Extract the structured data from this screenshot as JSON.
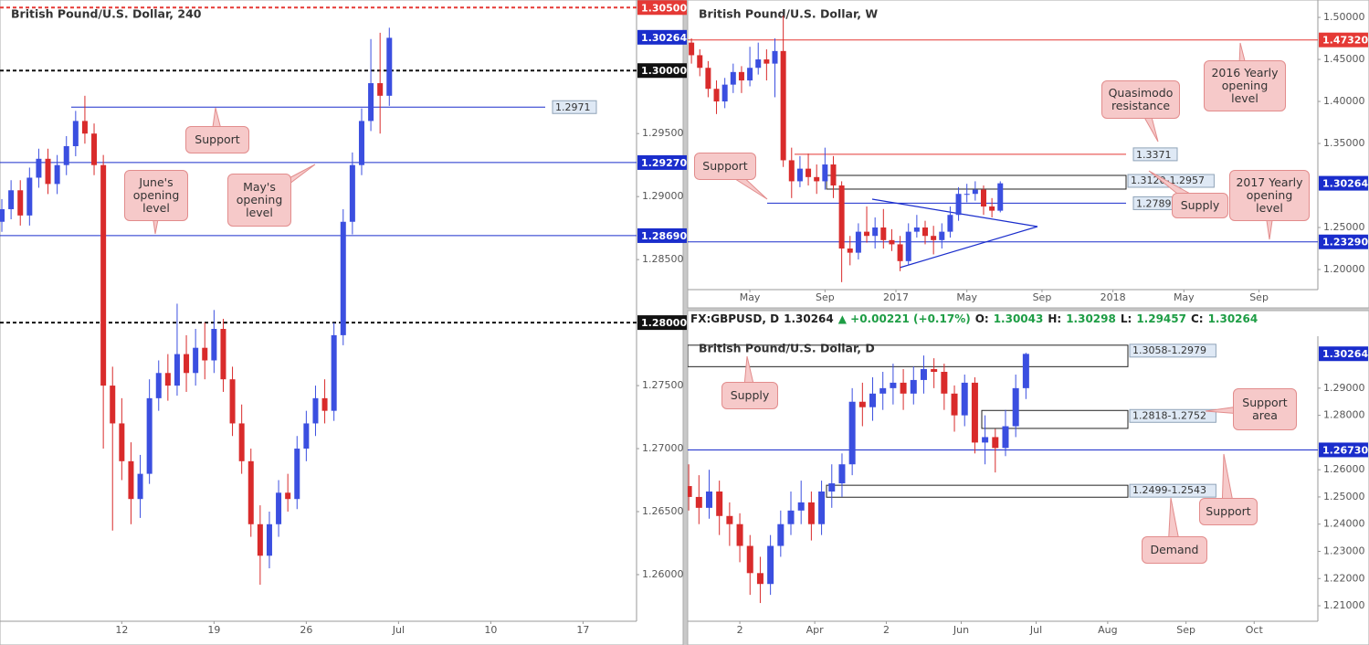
{
  "chart_data": [
    {
      "type": "candlestick",
      "title": "British Pound/U.S. Dollar, 240",
      "xlim": [
        3.4,
        37.9
      ],
      "ylim": [
        1.2563,
        1.3056
      ],
      "xticks": [
        {
          "value": 10,
          "label": "12"
        },
        {
          "value": 15,
          "label": "19"
        },
        {
          "value": 20,
          "label": "26"
        },
        {
          "value": 25,
          "label": "Jul"
        },
        {
          "value": 30,
          "label": "10"
        },
        {
          "value": 35,
          "label": "17"
        }
      ],
      "yticks": [
        {
          "value": 1.295,
          "label": "1.29500"
        },
        {
          "value": 1.29,
          "label": "1.29000"
        },
        {
          "value": 1.285,
          "label": "1.28500"
        },
        {
          "value": 1.275,
          "label": "1.27500"
        },
        {
          "value": 1.27,
          "label": "1.27000"
        },
        {
          "value": 1.265,
          "label": "1.26500"
        },
        {
          "value": 1.26,
          "label": "1.26000"
        }
      ],
      "up_color": "#3b4fe0",
      "down_color": "#d92b2b",
      "candles": [
        [
          3.5,
          1.288,
          1.2898,
          1.2872,
          1.289
        ],
        [
          4,
          1.289,
          1.2913,
          1.2882,
          1.2905
        ],
        [
          4.5,
          1.2905,
          1.2913,
          1.2877,
          1.2885
        ],
        [
          5,
          1.2885,
          1.2923,
          1.2877,
          1.2915
        ],
        [
          5.5,
          1.2915,
          1.2938,
          1.2907,
          1.293
        ],
        [
          6,
          1.293,
          1.2938,
          1.2902,
          1.291
        ],
        [
          6.5,
          1.291,
          1.2933,
          1.2902,
          1.2925
        ],
        [
          7,
          1.2925,
          1.2948,
          1.2917,
          1.294
        ],
        [
          7.5,
          1.294,
          1.2968,
          1.2932,
          1.296
        ],
        [
          8,
          1.296,
          1.298,
          1.2942,
          1.295
        ],
        [
          8.5,
          1.295,
          1.2958,
          1.2917,
          1.2925
        ],
        [
          9,
          1.2925,
          1.2933,
          1.27,
          1.275
        ],
        [
          9.5,
          1.275,
          1.2765,
          1.2635,
          1.272
        ],
        [
          10,
          1.272,
          1.274,
          1.2675,
          1.269
        ],
        [
          10.5,
          1.269,
          1.2705,
          1.264,
          1.266
        ],
        [
          11,
          1.266,
          1.2695,
          1.2645,
          1.268
        ],
        [
          11.5,
          1.268,
          1.2755,
          1.2672,
          1.274
        ],
        [
          12,
          1.274,
          1.277,
          1.273,
          1.276
        ],
        [
          12.5,
          1.276,
          1.2775,
          1.2738,
          1.275
        ],
        [
          13,
          1.275,
          1.2815,
          1.2742,
          1.2775
        ],
        [
          13.5,
          1.2775,
          1.279,
          1.2745,
          1.276
        ],
        [
          14,
          1.276,
          1.2795,
          1.275,
          1.278
        ],
        [
          14.5,
          1.278,
          1.28,
          1.2755,
          1.277
        ],
        [
          15,
          1.277,
          1.281,
          1.276,
          1.2795
        ],
        [
          15.5,
          1.2795,
          1.2803,
          1.2745,
          1.2755
        ],
        [
          16,
          1.2755,
          1.2765,
          1.271,
          1.272
        ],
        [
          16.5,
          1.272,
          1.2735,
          1.268,
          1.269
        ],
        [
          17,
          1.269,
          1.27,
          1.263,
          1.264
        ],
        [
          17.5,
          1.264,
          1.2655,
          1.2592,
          1.2615
        ],
        [
          18,
          1.2615,
          1.265,
          1.2605,
          1.264
        ],
        [
          18.5,
          1.264,
          1.2675,
          1.263,
          1.2665
        ],
        [
          19,
          1.2665,
          1.268,
          1.265,
          1.266
        ],
        [
          19.5,
          1.266,
          1.271,
          1.2652,
          1.27
        ],
        [
          20,
          1.27,
          1.273,
          1.269,
          1.272
        ],
        [
          20.5,
          1.272,
          1.275,
          1.271,
          1.274
        ],
        [
          21,
          1.274,
          1.2755,
          1.272,
          1.273
        ],
        [
          21.5,
          1.273,
          1.28,
          1.2722,
          1.279
        ],
        [
          22,
          1.279,
          1.289,
          1.2782,
          1.288
        ],
        [
          22.5,
          1.288,
          1.2935,
          1.287,
          1.2925
        ],
        [
          23,
          1.2925,
          1.297,
          1.2917,
          1.296
        ],
        [
          23.5,
          1.296,
          1.3025,
          1.2952,
          1.299
        ],
        [
          24,
          1.299,
          1.303,
          1.295,
          1.298
        ],
        [
          24.5,
          1.298,
          1.3034,
          1.2972,
          1.3026
        ]
      ],
      "levels": [
        {
          "value": 1.305,
          "label": "1.30500",
          "color": "#e53935",
          "style": "dashed",
          "tag": "axis"
        },
        {
          "value": 1.3,
          "label": "1.30000",
          "color": "#111111",
          "style": "dashed",
          "tag": "axis"
        },
        {
          "value": 1.2927,
          "label": "1.29270",
          "color": "#1a2dcc",
          "style": "solid",
          "tag": "axis"
        },
        {
          "value": 1.2869,
          "label": "1.28690",
          "color": "#1a2dcc",
          "style": "solid",
          "tag": "axis"
        },
        {
          "value": 1.28,
          "label": "1.28000",
          "color": "#111111",
          "style": "dashed",
          "tag": "axis"
        },
        {
          "value": 1.2971,
          "label": "1.2971",
          "color": "#1a2dcc",
          "style": "solid",
          "tag": "box"
        }
      ],
      "zones": [],
      "price": {
        "value": 1.30264,
        "label": "1.30264",
        "color": "#1a2dcc"
      },
      "annotations": [
        "Support",
        "June's opening level",
        "May's opening level"
      ]
    },
    {
      "type": "candlestick",
      "title": "British Pound/U.S. Dollar, W",
      "xlim": [
        2.1,
        153.1
      ],
      "ylim": [
        1.1761,
        1.5207
      ],
      "xticks": [
        {
          "value": 17,
          "label": "May"
        },
        {
          "value": 35,
          "label": "Sep"
        },
        {
          "value": 52,
          "label": "2017"
        },
        {
          "value": 69,
          "label": "May"
        },
        {
          "value": 87,
          "label": "Sep"
        },
        {
          "value": 104,
          "label": "2018"
        },
        {
          "value": 121,
          "label": "May"
        },
        {
          "value": 139,
          "label": "Sep"
        }
      ],
      "yticks": [
        {
          "value": 1.5,
          "label": "1.50000"
        },
        {
          "value": 1.45,
          "label": "1.45000"
        },
        {
          "value": 1.4,
          "label": "1.40000"
        },
        {
          "value": 1.35,
          "label": "1.35000"
        },
        {
          "value": 1.25,
          "label": "1.25000"
        },
        {
          "value": 1.2,
          "label": "1.20000"
        }
      ],
      "up_color": "#3b4fe0",
      "down_color": "#d92b2b",
      "candles": [
        [
          3,
          1.47,
          1.475,
          1.445,
          1.455
        ],
        [
          5,
          1.455,
          1.462,
          1.43,
          1.44
        ],
        [
          7,
          1.44,
          1.448,
          1.405,
          1.415
        ],
        [
          9,
          1.415,
          1.425,
          1.385,
          1.4
        ],
        [
          11,
          1.4,
          1.428,
          1.392,
          1.42
        ],
        [
          13,
          1.42,
          1.445,
          1.41,
          1.435
        ],
        [
          15,
          1.435,
          1.442,
          1.41,
          1.425
        ],
        [
          17,
          1.425,
          1.465,
          1.418,
          1.44
        ],
        [
          19,
          1.44,
          1.47,
          1.432,
          1.45
        ],
        [
          21,
          1.45,
          1.462,
          1.425,
          1.445
        ],
        [
          23,
          1.445,
          1.475,
          1.405,
          1.46
        ],
        [
          25,
          1.46,
          1.502,
          1.322,
          1.33
        ],
        [
          27,
          1.33,
          1.345,
          1.285,
          1.305
        ],
        [
          29,
          1.305,
          1.335,
          1.298,
          1.32
        ],
        [
          31,
          1.32,
          1.338,
          1.3,
          1.31
        ],
        [
          33,
          1.31,
          1.325,
          1.29,
          1.305
        ],
        [
          35,
          1.305,
          1.345,
          1.295,
          1.325
        ],
        [
          37,
          1.325,
          1.335,
          1.285,
          1.3
        ],
        [
          39,
          1.3,
          1.305,
          1.185,
          1.225
        ],
        [
          41,
          1.225,
          1.24,
          1.205,
          1.22
        ],
        [
          43,
          1.22,
          1.255,
          1.212,
          1.245
        ],
        [
          45,
          1.245,
          1.275,
          1.232,
          1.24
        ],
        [
          47,
          1.24,
          1.262,
          1.225,
          1.25
        ],
        [
          49,
          1.25,
          1.272,
          1.225,
          1.235
        ],
        [
          51,
          1.235,
          1.248,
          1.222,
          1.23
        ],
        [
          53,
          1.23,
          1.24,
          1.198,
          1.21
        ],
        [
          55,
          1.21,
          1.255,
          1.205,
          1.245
        ],
        [
          57,
          1.245,
          1.265,
          1.238,
          1.25
        ],
        [
          59,
          1.25,
          1.258,
          1.23,
          1.24
        ],
        [
          61,
          1.24,
          1.252,
          1.218,
          1.235
        ],
        [
          63,
          1.235,
          1.255,
          1.225,
          1.245
        ],
        [
          65,
          1.245,
          1.275,
          1.238,
          1.265
        ],
        [
          67,
          1.265,
          1.298,
          1.258,
          1.29
        ],
        [
          69,
          1.29,
          1.302,
          1.28,
          1.29
        ],
        [
          71,
          1.29,
          1.305,
          1.282,
          1.295
        ],
        [
          73,
          1.295,
          1.3,
          1.265,
          1.275
        ],
        [
          75,
          1.275,
          1.285,
          1.262,
          1.27
        ],
        [
          77,
          1.27,
          1.305,
          1.268,
          1.3026
        ]
      ],
      "levels": [
        {
          "value": 1.4732,
          "label": "1.47320",
          "color": "#e53935",
          "style": "solid",
          "tag": "axis"
        },
        {
          "value": 1.2329,
          "label": "1.23290",
          "color": "#1a2dcc",
          "style": "solid",
          "tag": "axis"
        },
        {
          "value": 1.3371,
          "label": "1.3371",
          "color": "#e53935",
          "style": "solid",
          "tag": "box"
        },
        {
          "value": 1.2789,
          "label": "1.2789",
          "color": "#1a2dcc",
          "style": "solid",
          "tag": "box"
        }
      ],
      "zones": [
        {
          "from": 1.312,
          "to": 1.2957,
          "label": "1.3120-1.2957"
        }
      ],
      "price": {
        "value": 1.30264,
        "label": "1.30264",
        "color": "#1a2dcc"
      },
      "annotations": [
        "Quasimodo resistance",
        "2016 Yearly opening level",
        "Support",
        "Supply",
        "2017 Yearly opening level"
      ]
    },
    {
      "type": "candlestick",
      "title": "British Pound/U.S. Dollar, D",
      "header": {
        "symbol": "FX:GBPUSD, D",
        "last": "1.30264",
        "change": "▲ +0.00221 (+0.17%)",
        "ohlc": [
          {
            "label": "O:",
            "value": "1.30043"
          },
          {
            "label": "H:",
            "value": "1.30298"
          },
          {
            "label": "L:",
            "value": "1.29457"
          },
          {
            "label": "C:",
            "value": "1.30264"
          }
        ]
      },
      "xlim": [
        -15.3,
        169.7
      ],
      "ylim": [
        1.2043,
        1.3091
      ],
      "xticks": [
        {
          "value": 0,
          "label": "2"
        },
        {
          "value": 22,
          "label": "Apr"
        },
        {
          "value": 43,
          "label": "2"
        },
        {
          "value": 65,
          "label": "Jun"
        },
        {
          "value": 87,
          "label": "Jul"
        },
        {
          "value": 108,
          "label": "Aug"
        },
        {
          "value": 131,
          "label": "Sep"
        },
        {
          "value": 151,
          "label": "Oct"
        }
      ],
      "yticks": [
        {
          "value": 1.29,
          "label": "1.29000"
        },
        {
          "value": 1.28,
          "label": "1.28000"
        },
        {
          "value": 1.26,
          "label": "1.26000"
        },
        {
          "value": 1.25,
          "label": "1.25000"
        },
        {
          "value": 1.24,
          "label": "1.24000"
        },
        {
          "value": 1.23,
          "label": "1.23000"
        },
        {
          "value": 1.22,
          "label": "1.22000"
        },
        {
          "value": 1.21,
          "label": "1.21000"
        }
      ],
      "up_color": "#3b4fe0",
      "down_color": "#d92b2b",
      "candles": [
        [
          -15,
          1.254,
          1.262,
          1.245,
          1.25
        ],
        [
          -12,
          1.25,
          1.258,
          1.24,
          1.246
        ],
        [
          -9,
          1.246,
          1.26,
          1.242,
          1.252
        ],
        [
          -6,
          1.252,
          1.256,
          1.236,
          1.243
        ],
        [
          -3,
          1.243,
          1.248,
          1.232,
          1.24
        ],
        [
          0,
          1.24,
          1.244,
          1.226,
          1.232
        ],
        [
          3,
          1.232,
          1.236,
          1.214,
          1.222
        ],
        [
          6,
          1.222,
          1.228,
          1.211,
          1.218
        ],
        [
          9,
          1.218,
          1.236,
          1.214,
          1.232
        ],
        [
          12,
          1.232,
          1.245,
          1.228,
          1.24
        ],
        [
          15,
          1.24,
          1.252,
          1.236,
          1.245
        ],
        [
          18,
          1.245,
          1.256,
          1.24,
          1.248
        ],
        [
          21,
          1.248,
          1.252,
          1.234,
          1.24
        ],
        [
          24,
          1.24,
          1.256,
          1.236,
          1.252
        ],
        [
          27,
          1.252,
          1.262,
          1.246,
          1.255
        ],
        [
          30,
          1.255,
          1.266,
          1.25,
          1.262
        ],
        [
          33,
          1.262,
          1.29,
          1.258,
          1.285
        ],
        [
          36,
          1.285,
          1.292,
          1.276,
          1.283
        ],
        [
          39,
          1.283,
          1.294,
          1.278,
          1.288
        ],
        [
          42,
          1.288,
          1.296,
          1.282,
          1.29
        ],
        [
          45,
          1.29,
          1.299,
          1.284,
          1.292
        ],
        [
          48,
          1.292,
          1.297,
          1.282,
          1.288
        ],
        [
          51,
          1.288,
          1.298,
          1.284,
          1.293
        ],
        [
          54,
          1.293,
          1.302,
          1.288,
          1.297
        ],
        [
          57,
          1.297,
          1.301,
          1.29,
          1.296
        ],
        [
          60,
          1.296,
          1.299,
          1.282,
          1.288
        ],
        [
          63,
          1.288,
          1.291,
          1.274,
          1.28
        ],
        [
          66,
          1.28,
          1.295,
          1.276,
          1.292
        ],
        [
          69,
          1.292,
          1.294,
          1.266,
          1.27
        ],
        [
          72,
          1.27,
          1.28,
          1.262,
          1.272
        ],
        [
          75,
          1.272,
          1.275,
          1.259,
          1.268
        ],
        [
          78,
          1.268,
          1.282,
          1.265,
          1.276
        ],
        [
          81,
          1.276,
          1.295,
          1.272,
          1.29
        ],
        [
          84,
          1.29,
          1.303,
          1.286,
          1.3026
        ]
      ],
      "levels": [
        {
          "value": 1.2673,
          "label": "1.26730",
          "color": "#1a2dcc",
          "style": "solid",
          "tag": "axis"
        }
      ],
      "zones": [
        {
          "from": 1.3058,
          "to": 1.2979,
          "label": "1.3058-1.2979"
        },
        {
          "from": 1.2818,
          "to": 1.2752,
          "label": "1.2818-1.2752"
        },
        {
          "from": 1.2499,
          "to": 1.2543,
          "label": "1.2499-1.2543"
        }
      ],
      "price": {
        "value": 1.30264,
        "label": "1.30264",
        "color": "#1a2dcc"
      },
      "annotations": [
        "Supply",
        "Support area",
        "Support",
        "Demand"
      ]
    }
  ]
}
